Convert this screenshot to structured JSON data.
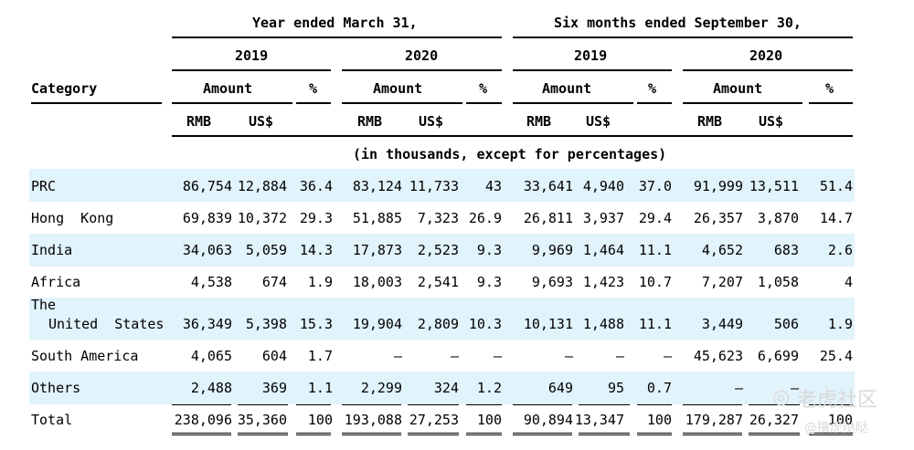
{
  "header": {
    "group_year": "Year ended March 31,",
    "group_six": "Six months ended September 30,",
    "years": [
      "2019",
      "2020",
      "2019",
      "2020"
    ],
    "category_label": "Category",
    "amount_label": "Amount",
    "pct_label": "%",
    "rmb_label": "RMB",
    "usd_label": "US$",
    "unit_note": "(in thousands, except for percentages)"
  },
  "rows": [
    {
      "category": "PRC",
      "cells": [
        "86,754",
        "12,884",
        "36.4",
        "83,124",
        "11,733",
        "43",
        "33,641",
        "4,940",
        "37.0",
        "91,999",
        "13,511",
        "51.4"
      ]
    },
    {
      "category": "Hong  Kong",
      "cells": [
        "69,839",
        "10,372",
        "29.3",
        "51,885",
        "7,323",
        "26.9",
        "26,811",
        "3,937",
        "29.4",
        "26,357",
        "3,870",
        "14.7"
      ]
    },
    {
      "category": "India",
      "cells": [
        "34,063",
        "5,059",
        "14.3",
        "17,873",
        "2,523",
        "9.3",
        "9,969",
        "1,464",
        "11.1",
        "4,652",
        "683",
        "2.6"
      ]
    },
    {
      "category": "Africa",
      "cells": [
        "4,538",
        "674",
        "1.9",
        "18,003",
        "2,541",
        "9.3",
        "9,693",
        "1,423",
        "10.7",
        "7,207",
        "1,058",
        "4"
      ]
    },
    {
      "category_line1": "The",
      "category_line2": "United  States",
      "cells": [
        "36,349",
        "5,398",
        "15.3",
        "19,904",
        "2,809",
        "10.3",
        "10,131",
        "1,488",
        "11.1",
        "3,449",
        "506",
        "1.9"
      ]
    },
    {
      "category": "South America",
      "cells": [
        "4,065",
        "604",
        "1.7",
        "—",
        "—",
        "—",
        "—",
        "—",
        "—",
        "45,623",
        "6,699",
        "25.4"
      ]
    },
    {
      "category": "Others",
      "cells": [
        "2,488",
        "369",
        "1.1",
        "2,299",
        "324",
        "1.2",
        "649",
        "95",
        "0.7",
        "—",
        "—",
        ""
      ]
    },
    {
      "category": "Total",
      "cells": [
        "238,096",
        "35,360",
        "100",
        "193,088",
        "27,253",
        "100",
        "90,894",
        "13,347",
        "100",
        "179,287",
        "26,327",
        "100"
      ]
    }
  ],
  "watermark": {
    "brand": "老虎社区",
    "sub": "@撸虎哒哒"
  }
}
